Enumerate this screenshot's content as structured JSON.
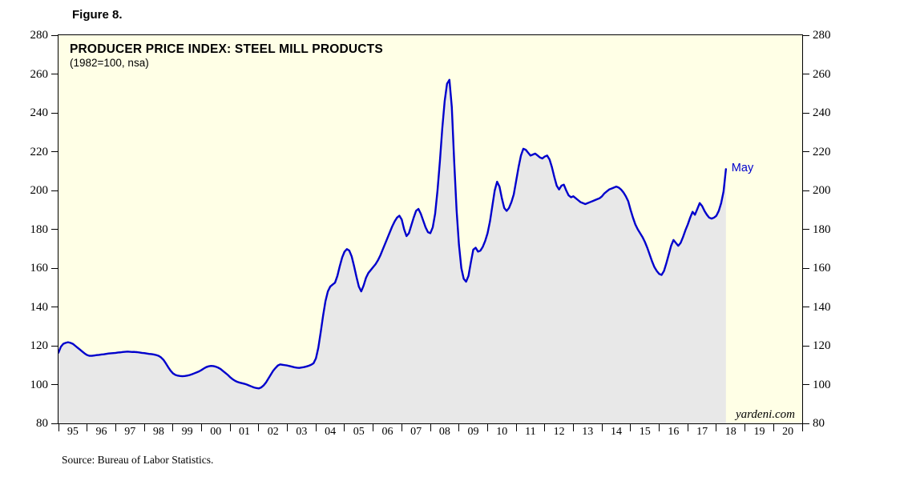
{
  "figure_label": "Figure 8.",
  "watermark": "yardeni.com",
  "source": "Source: Bureau of Labor Statistics.",
  "chart_data": {
    "type": "area",
    "title": "PRODUCER PRICE INDEX: STEEL MILL PRODUCTS",
    "subtitle": "(1982=100, nsa)",
    "xlabel": "",
    "ylabel": "",
    "ylim": [
      80,
      280
    ],
    "yticks": [
      80,
      100,
      120,
      140,
      160,
      180,
      200,
      220,
      240,
      260,
      280
    ],
    "xlim": [
      1995,
      2021
    ],
    "xtick_labels": [
      "95",
      "96",
      "97",
      "98",
      "99",
      "00",
      "01",
      "02",
      "03",
      "04",
      "05",
      "06",
      "07",
      "08",
      "09",
      "10",
      "11",
      "12",
      "13",
      "14",
      "15",
      "16",
      "17",
      "18",
      "19",
      "20"
    ],
    "grid": false,
    "legend_position": "none",
    "line_color": "#0000CC",
    "fill_color": "#E8E8E8",
    "plot_bg": "#FFFFE6",
    "annotation": {
      "label": "May",
      "x": 2018.333,
      "y": 211
    },
    "series": [
      {
        "name": "Producer Price Index: Steel Mill Products",
        "frequency": "monthly",
        "x_start": 1995.0,
        "x_step": 0.0833333,
        "values": [
          116.5,
          119.5,
          121.0,
          121.5,
          121.8,
          121.5,
          121.0,
          120.0,
          119.0,
          118.0,
          117.0,
          116.0,
          115.2,
          114.8,
          114.8,
          115.0,
          115.2,
          115.3,
          115.5,
          115.6,
          115.8,
          116.0,
          116.1,
          116.2,
          116.3,
          116.5,
          116.6,
          116.8,
          116.9,
          117.0,
          116.9,
          116.8,
          116.8,
          116.7,
          116.5,
          116.3,
          116.2,
          116.0,
          115.8,
          115.7,
          115.5,
          115.2,
          114.8,
          114.0,
          112.8,
          111.0,
          109.0,
          107.2,
          105.8,
          105.0,
          104.6,
          104.4,
          104.3,
          104.4,
          104.6,
          104.9,
          105.3,
          105.8,
          106.3,
          106.8,
          107.5,
          108.3,
          109.0,
          109.4,
          109.6,
          109.5,
          109.2,
          108.7,
          108.0,
          107.0,
          106.0,
          105.0,
          103.8,
          102.8,
          102.0,
          101.4,
          101.0,
          100.7,
          100.4,
          100.0,
          99.5,
          99.0,
          98.5,
          98.2,
          98.0,
          98.5,
          99.5,
          101.0,
          103.0,
          105.0,
          107.0,
          108.5,
          109.8,
          110.4,
          110.2,
          110.0,
          109.8,
          109.5,
          109.2,
          108.9,
          108.7,
          108.6,
          108.8,
          109.0,
          109.3,
          109.7,
          110.2,
          111.0,
          113.5,
          119.0,
          127.0,
          135.5,
          143.0,
          148.0,
          150.5,
          151.5,
          152.5,
          156.0,
          161.0,
          165.5,
          168.5,
          169.8,
          169.0,
          166.0,
          161.0,
          155.5,
          150.5,
          148.0,
          151.0,
          155.0,
          157.5,
          159.0,
          160.5,
          162.0,
          164.0,
          166.5,
          169.5,
          172.5,
          175.5,
          178.5,
          181.5,
          184.0,
          186.0,
          187.0,
          185.0,
          180.0,
          176.5,
          178.0,
          182.0,
          186.0,
          189.5,
          190.5,
          188.0,
          184.5,
          181.0,
          178.5,
          178.0,
          181.0,
          188.0,
          200.0,
          215.0,
          232.0,
          246.0,
          255.0,
          257.0,
          243.0,
          215.0,
          190.0,
          172.0,
          160.0,
          154.5,
          153.0,
          156.0,
          163.0,
          169.5,
          170.5,
          168.5,
          169.0,
          171.0,
          174.0,
          178.0,
          184.0,
          192.0,
          200.0,
          204.5,
          202.0,
          196.0,
          191.0,
          189.5,
          191.0,
          194.0,
          198.0,
          205.0,
          212.0,
          218.0,
          221.5,
          221.0,
          219.5,
          218.0,
          218.5,
          219.0,
          218.0,
          217.0,
          216.5,
          217.5,
          218.0,
          216.0,
          212.0,
          207.0,
          202.5,
          200.5,
          202.5,
          203.0,
          200.0,
          197.5,
          196.5,
          197.0,
          196.0,
          195.0,
          194.0,
          193.5,
          193.0,
          193.5,
          194.0,
          194.5,
          195.0,
          195.5,
          196.0,
          197.0,
          198.5,
          199.5,
          200.5,
          201.0,
          201.5,
          202.0,
          201.5,
          200.5,
          199.0,
          197.0,
          194.5,
          190.0,
          186.0,
          182.5,
          180.0,
          178.0,
          176.0,
          173.5,
          170.5,
          167.0,
          163.5,
          160.5,
          158.5,
          157.0,
          156.5,
          158.5,
          162.5,
          167.0,
          171.5,
          174.5,
          173.0,
          171.5,
          173.0,
          176.0,
          179.5,
          182.5,
          186.0,
          189.0,
          187.5,
          190.5,
          193.5,
          192.0,
          189.5,
          187.5,
          186.0,
          185.5,
          186.0,
          187.0,
          189.5,
          193.5,
          199.5,
          211.0
        ]
      }
    ]
  }
}
